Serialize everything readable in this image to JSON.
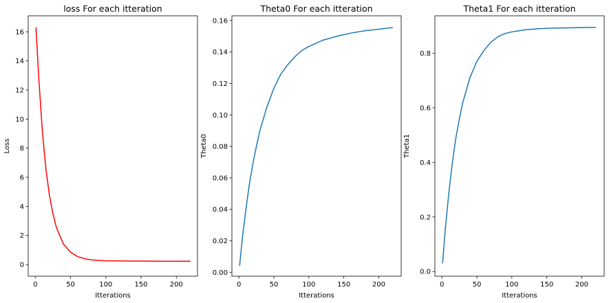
{
  "chart_data": [
    {
      "type": "line",
      "title": "loss For each itteration",
      "xlabel": "Itterations",
      "ylabel": "Loss",
      "xlim": [
        -10,
        230
      ],
      "ylim": [
        -0.8,
        17.1
      ],
      "xticks": [
        0,
        50,
        100,
        150,
        200
      ],
      "yticks": [
        0,
        2,
        4,
        6,
        8,
        10,
        12,
        14,
        16
      ],
      "ytick_labels": [
        "0",
        "2",
        "4",
        "6",
        "8",
        "10",
        "12",
        "14",
        "16"
      ],
      "color": "#ff0000",
      "series": [
        {
          "x": [
            1,
            5,
            10,
            15,
            20,
            25,
            30,
            40,
            50,
            60,
            70,
            80,
            90,
            100,
            120,
            140,
            160,
            180,
            200,
            220
          ],
          "values": [
            16.3,
            12.8,
            9.2,
            6.6,
            4.8,
            3.5,
            2.55,
            1.4,
            0.85,
            0.55,
            0.4,
            0.32,
            0.28,
            0.26,
            0.25,
            0.24,
            0.24,
            0.23,
            0.23,
            0.23
          ]
        }
      ]
    },
    {
      "type": "line",
      "title": "Theta0 For each itteration",
      "xlabel": "Itterations",
      "ylabel": "Theta0",
      "xlim": [
        -10,
        232
      ],
      "ylim": [
        -0.0025,
        0.163
      ],
      "xticks": [
        0,
        50,
        100,
        150,
        200
      ],
      "yticks": [
        0,
        0.02,
        0.04,
        0.06,
        0.08,
        0.1,
        0.12,
        0.14,
        0.16
      ],
      "ytick_labels": [
        "0.00",
        "0.02",
        "0.04",
        "0.06",
        "0.08",
        "0.10",
        "0.12",
        "0.14",
        "0.16"
      ],
      "color": "#1f77b4",
      "series": [
        {
          "x": [
            1,
            5,
            10,
            15,
            20,
            25,
            30,
            40,
            50,
            60,
            70,
            80,
            90,
            100,
            120,
            140,
            160,
            180,
            200,
            220
          ],
          "values": [
            0.004,
            0.022,
            0.04,
            0.056,
            0.069,
            0.08,
            0.09,
            0.105,
            0.117,
            0.126,
            0.132,
            0.137,
            0.141,
            0.1435,
            0.1475,
            0.15,
            0.152,
            0.1535,
            0.1545,
            0.1555
          ]
        }
      ]
    },
    {
      "type": "line",
      "title": "Theta1 For each itteration",
      "xlabel": "Itterations",
      "ylabel": "Theta1",
      "xlim": [
        -10,
        232
      ],
      "ylim": [
        -0.017,
        0.937
      ],
      "xticks": [
        0,
        50,
        100,
        150,
        200
      ],
      "yticks": [
        0,
        0.2,
        0.4,
        0.6,
        0.8
      ],
      "ytick_labels": [
        "0.0",
        "0.2",
        "0.4",
        "0.6",
        "0.8"
      ],
      "color": "#1f77b4",
      "series": [
        {
          "x": [
            1,
            5,
            10,
            15,
            20,
            25,
            30,
            40,
            50,
            60,
            70,
            80,
            90,
            100,
            120,
            140,
            160,
            180,
            200,
            220
          ],
          "values": [
            0.03,
            0.16,
            0.29,
            0.4,
            0.49,
            0.56,
            0.62,
            0.71,
            0.77,
            0.81,
            0.84,
            0.86,
            0.872,
            0.878,
            0.886,
            0.89,
            0.892,
            0.893,
            0.894,
            0.895
          ]
        }
      ]
    }
  ]
}
